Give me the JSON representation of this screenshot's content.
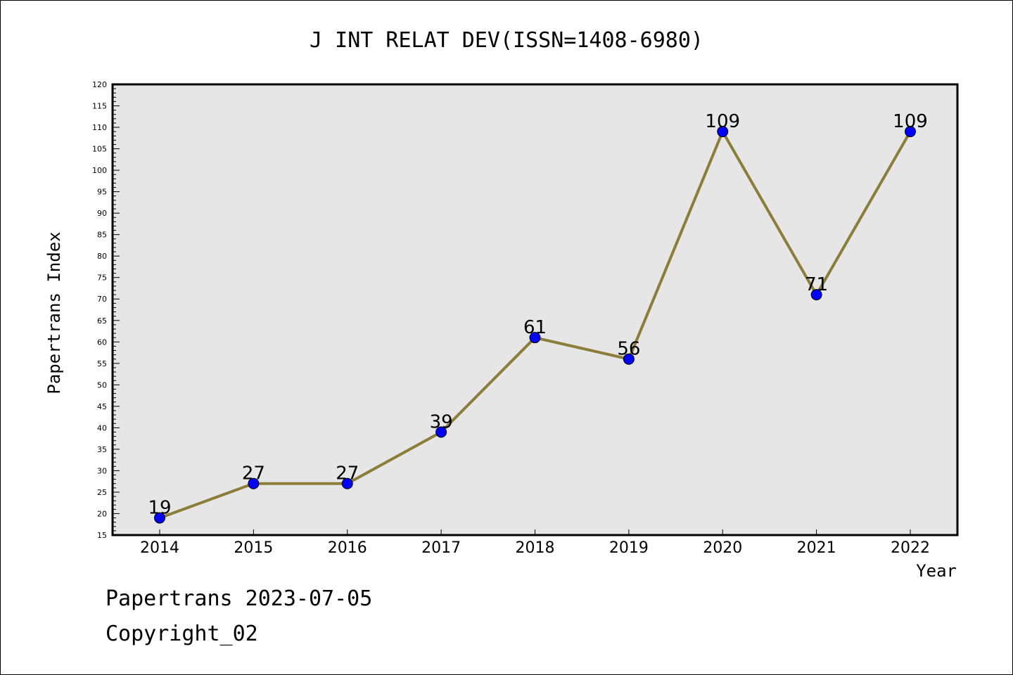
{
  "chart_data": {
    "type": "line",
    "title": "J INT RELAT DEV(ISSN=1408-6980)",
    "xlabel": "Year",
    "ylabel": "Papertrans Index",
    "categories": [
      "2014",
      "2015",
      "2016",
      "2017",
      "2018",
      "2019",
      "2020",
      "2021",
      "2022"
    ],
    "values": [
      19,
      27,
      27,
      39,
      61,
      56,
      109,
      71,
      109
    ],
    "data_labels": [
      "19",
      "27",
      "27",
      "39",
      "61",
      "56",
      "109",
      "71",
      "109"
    ],
    "ylim": [
      15,
      120
    ],
    "y_major_step": 5,
    "y_minor_step": 1,
    "grid": false,
    "colors": {
      "line": "#8b7d3a",
      "marker": "#0000ff",
      "plot_bg": "#e6e6e6"
    }
  },
  "footer": {
    "date_text": "Papertrans 2023-07-05",
    "copyright_text": "Copyright_02"
  }
}
